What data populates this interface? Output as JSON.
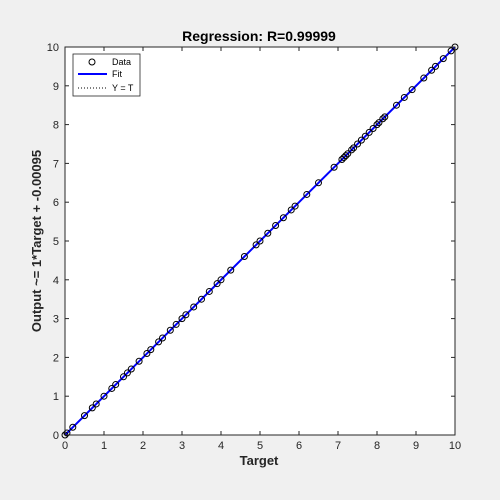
{
  "chart_data": {
    "type": "scatter",
    "title": "Regression: R=0.99999",
    "xlabel": "Target",
    "ylabel": "Output ~= 1*Target + -0.00095",
    "xlim": [
      0,
      10
    ],
    "ylim": [
      0,
      10
    ],
    "xticks": [
      "0",
      "1",
      "2",
      "3",
      "4",
      "5",
      "6",
      "7",
      "8",
      "9",
      "10"
    ],
    "yticks": [
      "0",
      "1",
      "2",
      "3",
      "4",
      "5",
      "6",
      "7",
      "8",
      "9",
      "10"
    ],
    "grid": false,
    "legend_position": "top-left",
    "series": [
      {
        "name": "Data",
        "marker": "circle",
        "color": "#000000",
        "x": [
          0.0,
          0.05,
          0.2,
          0.5,
          0.7,
          0.8,
          1.0,
          1.2,
          1.3,
          1.5,
          1.6,
          1.7,
          1.9,
          2.1,
          2.2,
          2.4,
          2.5,
          2.7,
          2.85,
          3.0,
          3.1,
          3.3,
          3.5,
          3.7,
          3.9,
          4.0,
          4.25,
          4.6,
          4.9,
          5.0,
          5.2,
          5.4,
          5.6,
          5.8,
          5.9,
          6.2,
          6.5,
          6.9,
          7.1,
          7.15,
          7.2,
          7.25,
          7.35,
          7.4,
          7.5,
          7.6,
          7.7,
          7.8,
          7.9,
          8.0,
          8.05,
          8.15,
          8.2,
          8.5,
          8.7,
          8.9,
          9.2,
          9.4,
          9.5,
          9.7,
          9.9,
          10.0
        ],
        "y": [
          0.0,
          0.05,
          0.2,
          0.5,
          0.7,
          0.8,
          1.0,
          1.2,
          1.3,
          1.5,
          1.6,
          1.7,
          1.9,
          2.1,
          2.2,
          2.4,
          2.5,
          2.7,
          2.85,
          3.0,
          3.1,
          3.3,
          3.5,
          3.7,
          3.9,
          4.0,
          4.25,
          4.6,
          4.9,
          5.0,
          5.2,
          5.4,
          5.6,
          5.8,
          5.9,
          6.2,
          6.5,
          6.9,
          7.1,
          7.15,
          7.2,
          7.25,
          7.35,
          7.4,
          7.5,
          7.6,
          7.7,
          7.8,
          7.9,
          8.0,
          8.05,
          8.15,
          8.2,
          8.5,
          8.7,
          8.9,
          9.2,
          9.4,
          9.5,
          9.7,
          9.9,
          10.0
        ]
      },
      {
        "name": "Fit",
        "line": "solid",
        "color": "#0000ff",
        "slope": 1,
        "intercept": -0.00095
      },
      {
        "name": "Y = T",
        "line": "dotted",
        "color": "#000000",
        "slope": 1,
        "intercept": 0
      }
    ]
  }
}
